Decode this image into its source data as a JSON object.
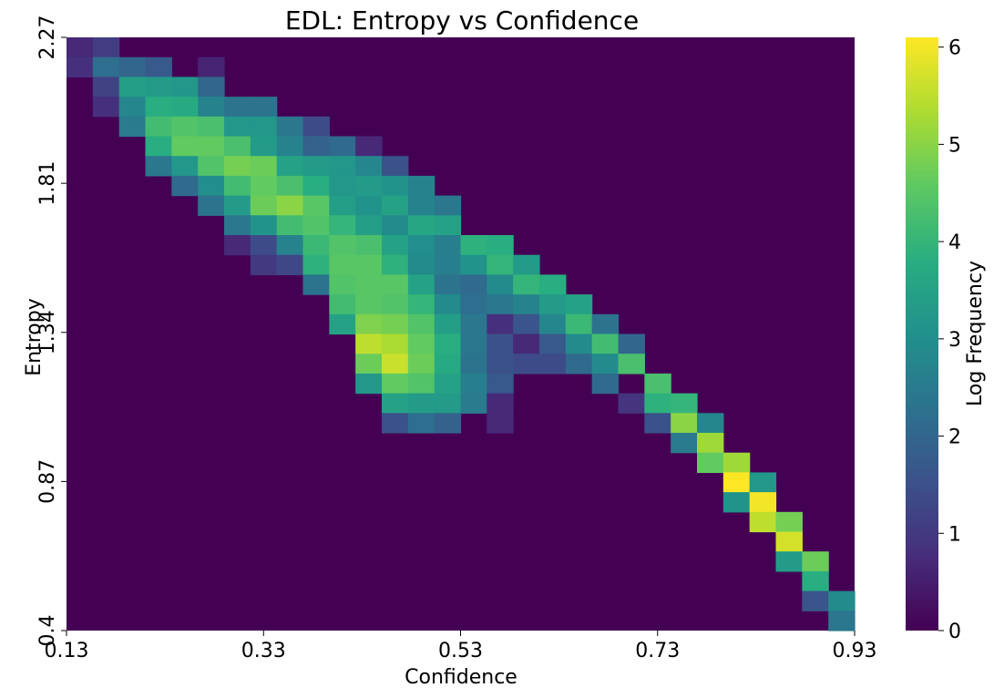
{
  "chart_data": {
    "type": "heatmap",
    "title": "EDL: Entropy vs Confidence",
    "xlabel": "Confidence",
    "ylabel": "Entropy",
    "colorbar_label": "Log Frequency",
    "colormap": "viridis",
    "xlim": [
      0.13,
      0.93
    ],
    "ylim": [
      0.4,
      2.27
    ],
    "x_ticks": [
      "0.13",
      "0.33",
      "0.53",
      "0.73",
      "0.93"
    ],
    "y_ticks": [
      "0.4",
      "0.87",
      "1.34",
      "1.81",
      "2.27"
    ],
    "colorbar_ticks": [
      "0",
      "1",
      "2",
      "3",
      "4",
      "5",
      "6"
    ],
    "colorbar_range": [
      0,
      6.1
    ],
    "grid": false,
    "bins": [
      30,
      30
    ],
    "values_row_order": "top (entropy 2.27) to bottom (entropy 0.4); columns left (confidence 0.13) to right (0.93)",
    "values": [
      [
        0.7,
        1.1,
        0,
        0,
        0,
        0,
        0,
        0,
        0,
        0,
        0,
        0,
        0,
        0,
        0,
        0,
        0,
        0,
        0,
        0,
        0,
        0,
        0,
        0,
        0,
        0,
        0,
        0,
        0,
        0
      ],
      [
        0.8,
        2.2,
        2.0,
        1.7,
        0,
        0.6,
        0,
        0,
        0,
        0,
        0,
        0,
        0,
        0,
        0,
        0,
        0,
        0,
        0,
        0,
        0,
        0,
        0,
        0,
        0,
        0,
        0,
        0,
        0,
        0
      ],
      [
        0,
        1.2,
        3.4,
        3.3,
        3.2,
        2.0,
        0,
        0,
        0,
        0,
        0,
        0,
        0,
        0,
        0,
        0,
        0,
        0,
        0,
        0,
        0,
        0,
        0,
        0,
        0,
        0,
        0,
        0,
        0,
        0
      ],
      [
        0,
        0.8,
        2.8,
        3.8,
        3.7,
        2.7,
        2.3,
        2.3,
        0,
        0,
        0,
        0,
        0,
        0,
        0,
        0,
        0,
        0,
        0,
        0,
        0,
        0,
        0,
        0,
        0,
        0,
        0,
        0,
        0,
        0
      ],
      [
        0,
        0,
        2.5,
        4.2,
        4.4,
        4.3,
        3.2,
        3.2,
        2.4,
        1.4,
        0,
        0,
        0,
        0,
        0,
        0,
        0,
        0,
        0,
        0,
        0,
        0,
        0,
        0,
        0,
        0,
        0,
        0,
        0,
        0
      ],
      [
        0,
        0,
        0,
        3.8,
        4.6,
        4.6,
        4.3,
        3.3,
        2.7,
        1.9,
        2.1,
        0.7,
        0,
        0,
        0,
        0,
        0,
        0,
        0,
        0,
        0,
        0,
        0,
        0,
        0,
        0,
        0,
        0,
        0,
        0
      ],
      [
        0,
        0,
        0,
        2.4,
        3.2,
        4.4,
        4.8,
        4.7,
        3.5,
        3.3,
        3.2,
        2.8,
        1.5,
        0,
        0,
        0,
        0,
        0,
        0,
        0,
        0,
        0,
        0,
        0,
        0,
        0,
        0,
        0,
        0,
        0
      ],
      [
        0,
        0,
        0,
        0,
        2.1,
        3.0,
        4.2,
        4.6,
        4.3,
        3.8,
        3.2,
        3.3,
        3.1,
        2.7,
        0,
        0,
        0,
        0,
        0,
        0,
        0,
        0,
        0,
        0,
        0,
        0,
        0,
        0,
        0,
        0
      ],
      [
        0,
        0,
        0,
        0,
        0,
        2.3,
        3.3,
        4.7,
        5.0,
        4.5,
        3.4,
        3.1,
        3.5,
        2.7,
        2.4,
        0,
        0,
        0,
        0,
        0,
        0,
        0,
        0,
        0,
        0,
        0,
        0,
        0,
        0,
        0
      ],
      [
        0,
        0,
        0,
        0,
        0,
        0,
        2.4,
        3.1,
        4.2,
        4.4,
        4.0,
        3.4,
        2.9,
        3.6,
        3.5,
        0,
        0,
        0,
        0,
        0,
        0,
        0,
        0,
        0,
        0,
        0,
        0,
        0,
        0,
        0
      ],
      [
        0,
        0,
        0,
        0,
        0,
        0,
        0.7,
        1.4,
        2.7,
        4.1,
        4.4,
        4.3,
        3.5,
        3.0,
        2.6,
        3.9,
        3.8,
        0,
        0,
        0,
        0,
        0,
        0,
        0,
        0,
        0,
        0,
        0,
        0,
        0
      ],
      [
        0,
        0,
        0,
        0,
        0,
        0,
        0,
        1.0,
        1.3,
        3.9,
        4.5,
        4.5,
        3.9,
        2.9,
        2.6,
        3.1,
        4.0,
        3.3,
        0,
        0,
        0,
        0,
        0,
        0,
        0,
        0,
        0,
        0,
        0,
        0
      ],
      [
        0,
        0,
        0,
        0,
        0,
        0,
        0,
        0,
        0,
        2.3,
        4.4,
        4.5,
        4.5,
        3.5,
        2.3,
        2.1,
        2.9,
        4.0,
        3.8,
        0,
        0,
        0,
        0,
        0,
        0,
        0,
        0,
        0,
        0,
        0
      ],
      [
        0,
        0,
        0,
        0,
        0,
        0,
        0,
        0,
        0,
        0,
        4.2,
        4.5,
        4.4,
        4.0,
        2.9,
        2.2,
        2.4,
        2.7,
        3.3,
        3.5,
        0,
        0,
        0,
        0,
        0,
        0,
        0,
        0,
        0,
        0
      ],
      [
        0,
        0,
        0,
        0,
        0,
        0,
        0,
        0,
        0,
        0,
        3.5,
        4.9,
        4.8,
        4.4,
        3.4,
        2.4,
        0.8,
        1.6,
        2.8,
        4.1,
        2.3,
        0,
        0,
        0,
        0,
        0,
        0,
        0,
        0,
        0
      ],
      [
        0,
        0,
        0,
        0,
        0,
        0,
        0,
        0,
        0,
        0,
        0,
        5.5,
        5.3,
        4.6,
        3.8,
        2.4,
        1.5,
        0.7,
        1.7,
        2.9,
        4.2,
        2.0,
        0,
        0,
        0,
        0,
        0,
        0,
        0,
        0
      ],
      [
        0,
        0,
        0,
        0,
        0,
        0,
        0,
        0,
        0,
        0,
        0,
        4.7,
        5.6,
        4.7,
        3.7,
        2.3,
        1.5,
        1.4,
        1.4,
        2.1,
        2.9,
        4.3,
        0,
        0,
        0,
        0,
        0,
        0,
        0,
        0
      ],
      [
        0,
        0,
        0,
        0,
        0,
        0,
        0,
        0,
        0,
        0,
        0,
        3.2,
        4.6,
        4.4,
        3.5,
        2.6,
        1.7,
        0,
        0,
        0,
        2.1,
        0,
        4.3,
        0,
        0,
        0,
        0,
        0,
        0,
        0
      ],
      [
        0,
        0,
        0,
        0,
        0,
        0,
        0,
        0,
        0,
        0,
        0,
        0,
        3.5,
        3.3,
        3.3,
        2.5,
        0.7,
        0,
        0,
        0,
        0,
        0.9,
        3.9,
        4.0,
        0,
        0,
        0,
        0,
        0,
        0
      ],
      [
        0,
        0,
        0,
        0,
        0,
        0,
        0,
        0,
        0,
        0,
        0,
        0,
        1.5,
        2.2,
        1.9,
        0,
        0.7,
        0,
        0,
        0,
        0,
        0,
        1.5,
        5.0,
        2.8,
        0,
        0,
        0,
        0,
        0
      ],
      [
        0,
        0,
        0,
        0,
        0,
        0,
        0,
        0,
        0,
        0,
        0,
        0,
        0,
        0,
        0,
        0,
        0,
        0,
        0,
        0,
        0,
        0,
        0,
        2.5,
        5.2,
        0,
        0,
        0,
        0,
        0
      ],
      [
        0,
        0,
        0,
        0,
        0,
        0,
        0,
        0,
        0,
        0,
        0,
        0,
        0,
        0,
        0,
        0,
        0,
        0,
        0,
        0,
        0,
        0,
        0,
        0,
        4.6,
        5.2,
        0,
        0,
        0,
        0
      ],
      [
        0,
        0,
        0,
        0,
        0,
        0,
        0,
        0,
        0,
        0,
        0,
        0,
        0,
        0,
        0,
        0,
        0,
        0,
        0,
        0,
        0,
        0,
        0,
        0,
        0,
        6.1,
        3.2,
        0,
        0,
        0
      ],
      [
        0,
        0,
        0,
        0,
        0,
        0,
        0,
        0,
        0,
        0,
        0,
        0,
        0,
        0,
        0,
        0,
        0,
        0,
        0,
        0,
        0,
        0,
        0,
        0,
        0,
        3.1,
        6.0,
        0,
        0,
        0
      ],
      [
        0,
        0,
        0,
        0,
        0,
        0,
        0,
        0,
        0,
        0,
        0,
        0,
        0,
        0,
        0,
        0,
        0,
        0,
        0,
        0,
        0,
        0,
        0,
        0,
        0,
        0,
        5.5,
        4.8,
        0,
        0
      ],
      [
        0,
        0,
        0,
        0,
        0,
        0,
        0,
        0,
        0,
        0,
        0,
        0,
        0,
        0,
        0,
        0,
        0,
        0,
        0,
        0,
        0,
        0,
        0,
        0,
        0,
        0,
        0,
        5.7,
        0,
        0
      ],
      [
        0,
        0,
        0,
        0,
        0,
        0,
        0,
        0,
        0,
        0,
        0,
        0,
        0,
        0,
        0,
        0,
        0,
        0,
        0,
        0,
        0,
        0,
        0,
        0,
        0,
        0,
        0,
        3.3,
        4.7,
        0
      ],
      [
        0,
        0,
        0,
        0,
        0,
        0,
        0,
        0,
        0,
        0,
        0,
        0,
        0,
        0,
        0,
        0,
        0,
        0,
        0,
        0,
        0,
        0,
        0,
        0,
        0,
        0,
        0,
        0,
        3.8,
        0
      ],
      [
        0,
        0,
        0,
        0,
        0,
        0,
        0,
        0,
        0,
        0,
        0,
        0,
        0,
        0,
        0,
        0,
        0,
        0,
        0,
        0,
        0,
        0,
        0,
        0,
        0,
        0,
        0,
        0,
        1.6,
        2.9
      ],
      [
        0,
        0,
        0,
        0,
        0,
        0,
        0,
        0,
        0,
        0,
        0,
        0,
        0,
        0,
        0,
        0,
        0,
        0,
        0,
        0,
        0,
        0,
        0,
        0,
        0,
        0,
        0,
        0,
        0,
        2.4
      ]
    ]
  }
}
